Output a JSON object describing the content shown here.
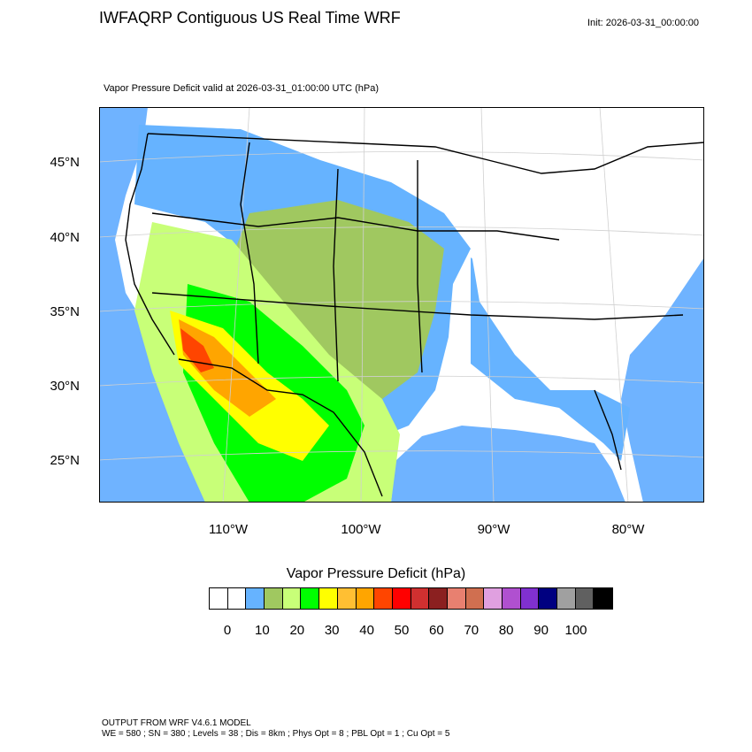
{
  "header": {
    "title": "IWFAQRP Contiguous US Real Time WRF",
    "init": "Init: 2026-03-31_00:00:00",
    "subtitle": "Vapor Pressure Deficit valid at 2026-03-31_01:00:00 UTC   (hPa)"
  },
  "map": {
    "lat_labels": [
      "45°N",
      "40°N",
      "35°N",
      "30°N",
      "25°N"
    ],
    "lon_labels": [
      "110°W",
      "100°W",
      "90°W",
      "80°W"
    ],
    "ocean_color": "#6fb3ff"
  },
  "colorbar": {
    "title": "Vapor Pressure Deficit  (hPa)",
    "labels": [
      "0",
      "10",
      "20",
      "30",
      "40",
      "50",
      "60",
      "70",
      "80",
      "90",
      "100"
    ],
    "colors": [
      "#ffffff",
      "#ffffff",
      "#66b3ff",
      "#a0c860",
      "#c8ff78",
      "#00ff00",
      "#ffff00",
      "#ffbf33",
      "#ffa500",
      "#ff4500",
      "#ff0000",
      "#d03030",
      "#8b2020",
      "#e88070",
      "#d06f50",
      "#e0a0e0",
      "#b050d0",
      "#8030d0",
      "#000080",
      "#a0a0a0",
      "#606060",
      "#000000"
    ]
  },
  "footer": {
    "line1": "OUTPUT FROM WRF V4.6.1 MODEL",
    "line2": "WE = 580 ; SN = 380 ; Levels = 38 ; Dis = 8km ; Phys Opt = 8 ; PBL Opt = 1 ; Cu Opt = 5"
  }
}
